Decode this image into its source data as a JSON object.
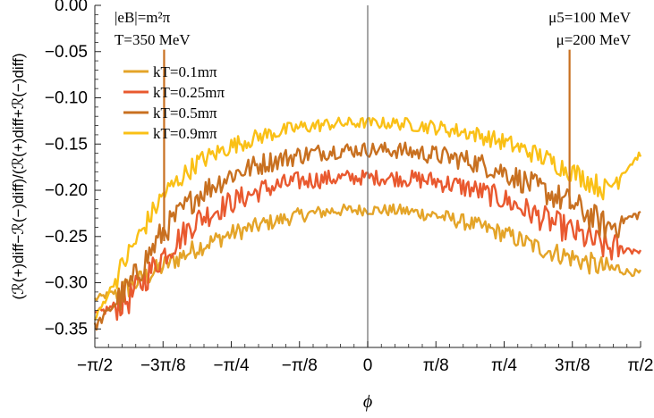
{
  "chart_data": {
    "type": "line",
    "xlabel": "ϕ",
    "ylabel": "(ℛ(+)diff−ℛ(−)diff)/(ℛ(+)diff+ℛ(−)diff)",
    "xlim": [
      -1.5708,
      1.5708
    ],
    "ylim": [
      -0.37,
      0.0
    ],
    "x_tick_labels": [
      "−π/2",
      "−3π/8",
      "−π/4",
      "−π/8",
      "0",
      "π/8",
      "π/4",
      "3π/8",
      "π/2"
    ],
    "y_tick_labels": [
      "0.00",
      "−0.05",
      "−0.10",
      "−0.15",
      "−0.20",
      "−0.25",
      "−0.30",
      "−0.35"
    ],
    "x_ticks": [
      -1.5708,
      -1.1781,
      -0.7854,
      -0.3927,
      0,
      0.3927,
      0.7854,
      1.1781,
      1.5708
    ],
    "y_ticks": [
      0,
      -0.05,
      -0.1,
      -0.15,
      -0.2,
      -0.25,
      -0.3,
      -0.35
    ],
    "annotations": {
      "top_left_1": "|eB|=m²π",
      "top_left_2": "T=350 MeV",
      "top_right_1": "μ5=100 MeV",
      "top_right_2": "μ=200 MeV"
    },
    "legend_placement": "upper-left",
    "grid": false,
    "x": [
      -1.5708,
      -1.3744,
      -1.1781,
      -0.9817,
      -0.7854,
      -0.589,
      -0.3927,
      -0.1963,
      0.0,
      0.1963,
      0.3927,
      0.589,
      0.7854,
      0.9817,
      1.1781,
      1.3744,
      1.5708
    ],
    "series": [
      {
        "name": "kT=0.1mπ",
        "color": "#E4A428",
        "noise": 0.006,
        "values": [
          -0.318,
          -0.305,
          -0.282,
          -0.262,
          -0.247,
          -0.236,
          -0.227,
          -0.222,
          -0.221,
          -0.222,
          -0.227,
          -0.236,
          -0.247,
          -0.262,
          -0.273,
          -0.285,
          -0.29
        ]
      },
      {
        "name": "kT=0.25mπ",
        "color": "#E9592F",
        "noise": 0.008,
        "values": [
          -0.335,
          -0.318,
          -0.27,
          -0.232,
          -0.213,
          -0.198,
          -0.19,
          -0.187,
          -0.186,
          -0.187,
          -0.19,
          -0.198,
          -0.21,
          -0.228,
          -0.245,
          -0.262,
          -0.265
        ]
      },
      {
        "name": "kT=0.5mπ",
        "color": "#C87020",
        "noise": 0.008,
        "values": [
          -0.348,
          -0.305,
          -0.245,
          -0.205,
          -0.183,
          -0.17,
          -0.162,
          -0.157,
          -0.156,
          -0.157,
          -0.162,
          -0.168,
          -0.18,
          -0.198,
          -0.215,
          -0.24,
          -0.225
        ]
      },
      {
        "name": "kT=0.9mπ",
        "color": "#FAC016",
        "noise": 0.006,
        "values": [
          -0.34,
          -0.268,
          -0.205,
          -0.17,
          -0.152,
          -0.14,
          -0.132,
          -0.128,
          -0.127,
          -0.128,
          -0.132,
          -0.138,
          -0.148,
          -0.162,
          -0.18,
          -0.2,
          -0.16
        ]
      }
    ]
  }
}
